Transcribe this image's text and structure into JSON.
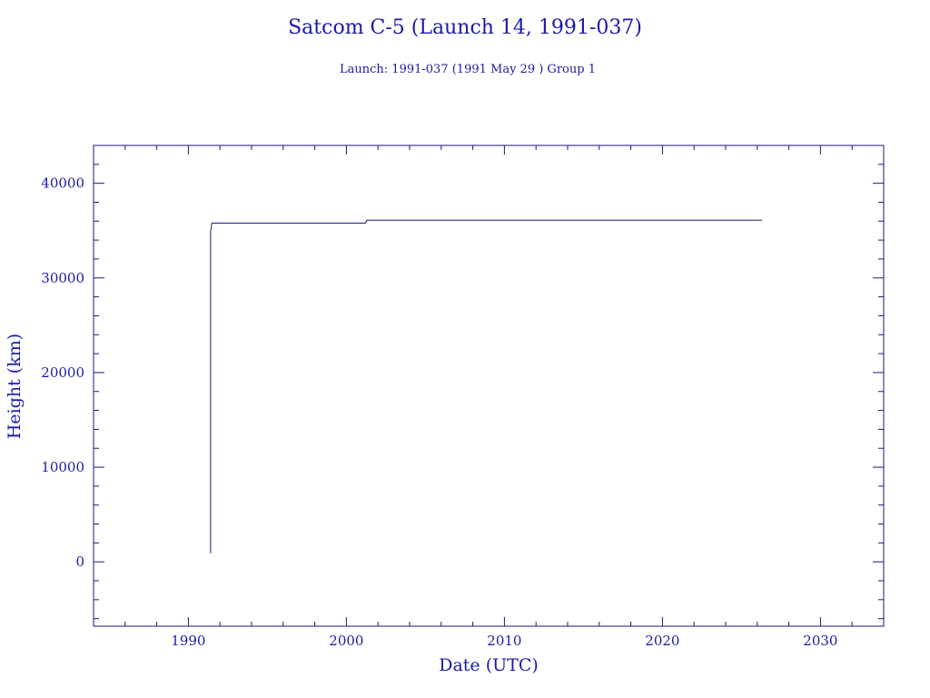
{
  "chart_data": {
    "type": "line",
    "title": "Satcom C-5 (Launch 14, 1991-037)",
    "subtitle": "Launch: 1991-037  (1991 May 29 )  Group 1",
    "xlabel": "Date (UTC)",
    "ylabel": "Height (km)",
    "xlim": [
      1984,
      2034
    ],
    "ylim": [
      -6800,
      44000
    ],
    "x_ticks": [
      1990,
      2000,
      2010,
      2020,
      2030
    ],
    "x_tick_labels": [
      "1990",
      "2000",
      "2010",
      "2020",
      "2030"
    ],
    "y_ticks": [
      0,
      10000,
      20000,
      30000,
      40000
    ],
    "y_tick_labels": [
      "0",
      "10000",
      "20000",
      "30000",
      "40000"
    ],
    "grid": false,
    "colors": {
      "line": "#1a1a7a",
      "text": "#1a1aa8",
      "axes": "#1a1a7a"
    },
    "series": [
      {
        "x": [
          1991.41,
          1991.41,
          1991.45,
          1991.47,
          1991.5,
          1991.6,
          2001.2,
          2001.3,
          2026.3
        ],
        "y": [
          900,
          35000,
          35300,
          35700,
          35790,
          35790,
          35790,
          36100,
          36100
        ]
      }
    ]
  }
}
